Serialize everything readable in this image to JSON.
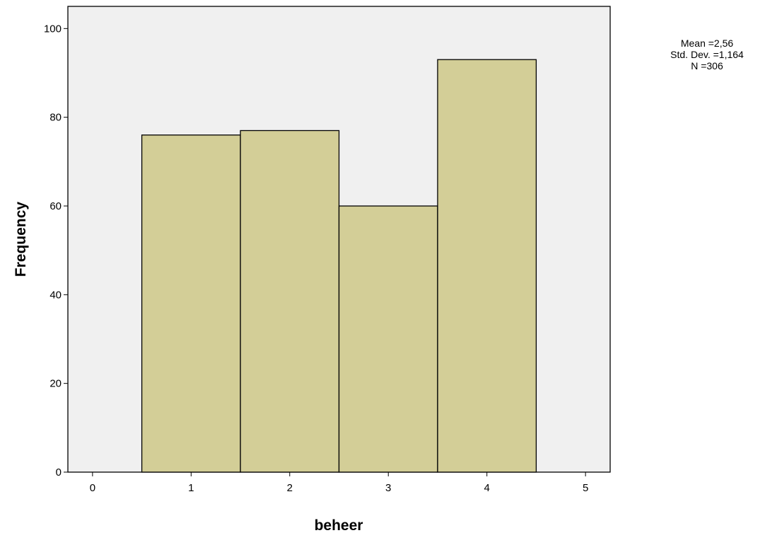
{
  "chart_data": {
    "type": "bar",
    "subtype": "histogram",
    "bins": [
      {
        "x": 1,
        "value": 76
      },
      {
        "x": 2,
        "value": 77
      },
      {
        "x": 3,
        "value": 60
      },
      {
        "x": 4,
        "value": 93
      }
    ],
    "xlabel": "beheer",
    "ylabel": "Frequency",
    "xlim": [
      -0.25,
      5.25
    ],
    "ylim": [
      0,
      105
    ],
    "xticks": [
      "0",
      "1",
      "2",
      "3",
      "4",
      "5"
    ],
    "yticks": [
      "0",
      "20",
      "40",
      "60",
      "80",
      "100"
    ],
    "grid": false,
    "stats": {
      "mean": "Mean =2,56",
      "std_dev": "Std. Dev. =1,164",
      "n": "N =306"
    },
    "colors": {
      "plot_background": "#f0f0f0",
      "bar_fill": "#d3ce97",
      "bar_stroke": "#000000",
      "frame": "#000000"
    }
  }
}
